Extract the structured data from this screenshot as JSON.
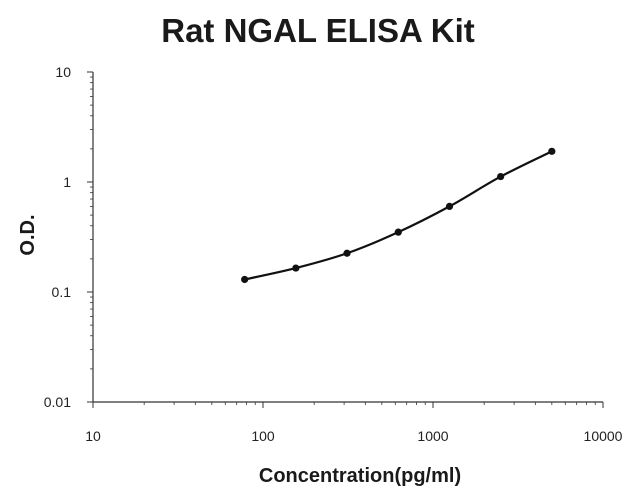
{
  "chart_data": {
    "type": "scatter",
    "title": "Rat NGAL ELISA Kit",
    "xlabel": "Concentration(pg/ml)",
    "ylabel": "O.D.",
    "x_scale": "log",
    "y_scale": "log",
    "xlim": [
      10,
      10000
    ],
    "ylim": [
      0.01,
      10
    ],
    "x_ticks": [
      "10",
      "100",
      "1000",
      "10000"
    ],
    "y_ticks": [
      "0.01",
      "0.1",
      "1",
      "10"
    ],
    "grid": false,
    "legend": "none",
    "series": [
      {
        "x": [
          78,
          156,
          312,
          625,
          1250,
          2500,
          5000
        ],
        "y": [
          0.13,
          0.165,
          0.225,
          0.35,
          0.6,
          1.12,
          1.9
        ],
        "fit_curve": true
      }
    ],
    "colors": {
      "marks": "#111111",
      "axis": "#333333"
    }
  }
}
